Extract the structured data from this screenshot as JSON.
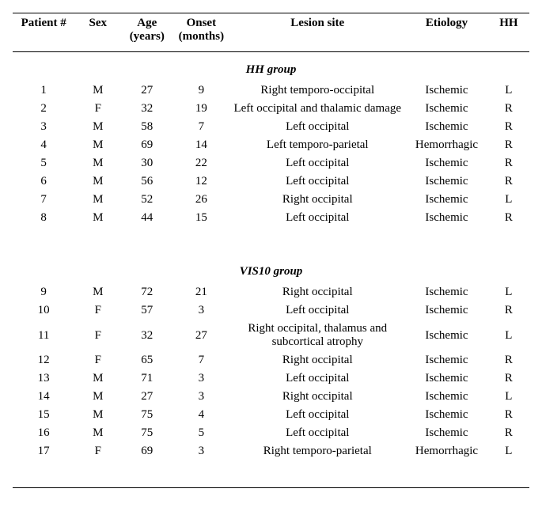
{
  "columns": {
    "patient": "Patient #",
    "sex": "Sex",
    "age_line1": "Age",
    "age_line2": "(years)",
    "onset_line1": "Onset",
    "onset_line2": "(months)",
    "lesion": "Lesion site",
    "etiology": "Etiology",
    "hh": "HH"
  },
  "groups": {
    "hh": "HH group",
    "vis10": "VIS10 group"
  },
  "rows_hh": [
    {
      "patient": "1",
      "sex": "M",
      "age": "27",
      "onset": "9",
      "lesion": "Right temporo-occipital",
      "etiology": "Ischemic",
      "hh": "L"
    },
    {
      "patient": "2",
      "sex": "F",
      "age": "32",
      "onset": "19",
      "lesion": "Left occipital and thalamic damage",
      "etiology": "Ischemic",
      "hh": "R"
    },
    {
      "patient": "3",
      "sex": "M",
      "age": "58",
      "onset": "7",
      "lesion": "Left occipital",
      "etiology": "Ischemic",
      "hh": "R"
    },
    {
      "patient": "4",
      "sex": "M",
      "age": "69",
      "onset": "14",
      "lesion": "Left temporo-parietal",
      "etiology": "Hemorrhagic",
      "hh": "R"
    },
    {
      "patient": "5",
      "sex": "M",
      "age": "30",
      "onset": "22",
      "lesion": "Left occipital",
      "etiology": "Ischemic",
      "hh": "R"
    },
    {
      "patient": "6",
      "sex": "M",
      "age": "56",
      "onset": "12",
      "lesion": "Left occipital",
      "etiology": "Ischemic",
      "hh": "R"
    },
    {
      "patient": "7",
      "sex": "M",
      "age": "52",
      "onset": "26",
      "lesion": "Right occipital",
      "etiology": "Ischemic",
      "hh": "L"
    },
    {
      "patient": "8",
      "sex": "M",
      "age": "44",
      "onset": "15",
      "lesion": "Left occipital",
      "etiology": "Ischemic",
      "hh": "R"
    }
  ],
  "rows_vis10": [
    {
      "patient": "9",
      "sex": "M",
      "age": "72",
      "onset": "21",
      "lesion": "Right occipital",
      "etiology": "Ischemic",
      "hh": "L"
    },
    {
      "patient": "10",
      "sex": "F",
      "age": "57",
      "onset": "3",
      "lesion": "Left occipital",
      "etiology": "Ischemic",
      "hh": "R"
    },
    {
      "patient": "11",
      "sex": "F",
      "age": "32",
      "onset": "27",
      "lesion": "Right occipital, thalamus and subcortical atrophy",
      "etiology": "Ischemic",
      "hh": "L"
    },
    {
      "patient": "12",
      "sex": "F",
      "age": "65",
      "onset": "7",
      "lesion": "Right occipital",
      "etiology": "Ischemic",
      "hh": "R"
    },
    {
      "patient": "13",
      "sex": "M",
      "age": "71",
      "onset": "3",
      "lesion": "Left occipital",
      "etiology": "Ischemic",
      "hh": "R"
    },
    {
      "patient": "14",
      "sex": "M",
      "age": "27",
      "onset": "3",
      "lesion": "Right occipital",
      "etiology": "Ischemic",
      "hh": "L"
    },
    {
      "patient": "15",
      "sex": "M",
      "age": "75",
      "onset": "4",
      "lesion": "Left occipital",
      "etiology": "Ischemic",
      "hh": "R"
    },
    {
      "patient": "16",
      "sex": "M",
      "age": "75",
      "onset": "5",
      "lesion": "Left occipital",
      "etiology": "Ischemic",
      "hh": "R"
    },
    {
      "patient": "17",
      "sex": "F",
      "age": "69",
      "onset": "3",
      "lesion": "Right temporo-parietal",
      "etiology": "Hemorrhagic",
      "hh": "L"
    }
  ]
}
